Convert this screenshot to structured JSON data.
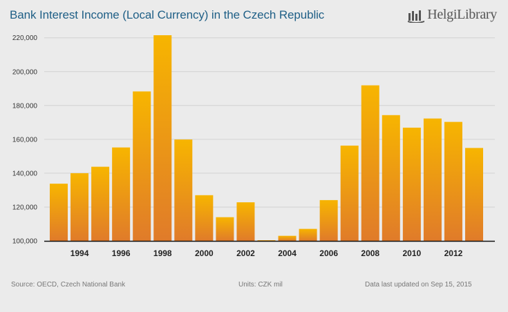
{
  "title": "Bank Interest Income (Local Currency) in the Czech Republic",
  "logo": {
    "brand": "HelgiLibrary",
    "icon": "library-bars-icon"
  },
  "footer": {
    "source": "Source: OECD, Czech National Bank",
    "units": "Units: CZK mil",
    "updated": "Data last updated on Sep 15, 2015"
  },
  "colors": {
    "bar_top": "#f7b500",
    "bar_bottom": "#e07b2a",
    "title": "#1f5f86",
    "grid": "#d2d2d2"
  },
  "chart_data": {
    "type": "bar",
    "categories": [
      1993,
      1994,
      1995,
      1996,
      1997,
      1998,
      1999,
      2000,
      2001,
      2002,
      2003,
      2004,
      2005,
      2006,
      2007,
      2008,
      2009,
      2010,
      2011,
      2012,
      2013
    ],
    "values": [
      133800,
      140000,
      143800,
      155200,
      188300,
      221500,
      159900,
      127000,
      114000,
      122800,
      100400,
      103000,
      107100,
      124100,
      156300,
      191900,
      174300,
      166900,
      172300,
      170300,
      154900
    ],
    "x_tick_labels": [
      "1994",
      "1996",
      "1998",
      "2000",
      "2002",
      "2004",
      "2006",
      "2008",
      "2010",
      "2012"
    ],
    "y_ticks": [
      "100,000",
      "120,000",
      "140,000",
      "160,000",
      "180,000",
      "200,000",
      "220,000"
    ],
    "y_tick_values": [
      100000,
      120000,
      140000,
      160000,
      180000,
      200000,
      220000
    ],
    "ylim": [
      100000,
      226000
    ],
    "grid": true
  }
}
